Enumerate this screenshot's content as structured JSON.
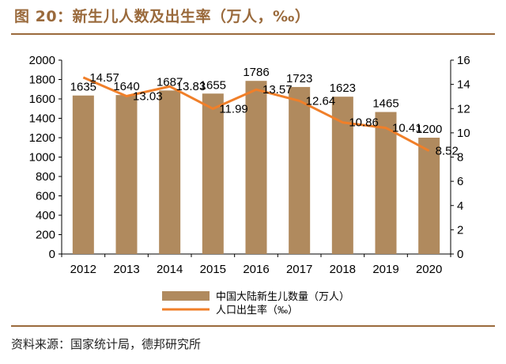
{
  "header": {
    "title": "图 20：新生儿人数及出生率（万人，‰）"
  },
  "source": "资料来源：国家统计局，德邦研究所",
  "colors": {
    "bar": "#b08a5e",
    "line": "#f07f29",
    "accent": "#9a6a3c"
  },
  "chart_data": {
    "type": "bar",
    "categories": [
      "2012",
      "2013",
      "2014",
      "2015",
      "2016",
      "2017",
      "2018",
      "2019",
      "2020"
    ],
    "y_ticks": [
      "0",
      "200",
      "400",
      "600",
      "800",
      "1000",
      "1200",
      "1400",
      "1600",
      "1800",
      "2000"
    ],
    "y2_ticks": [
      "0",
      "2",
      "4",
      "6",
      "8",
      "10",
      "12",
      "14",
      "16"
    ],
    "ylim": [
      0,
      2000
    ],
    "y2lim": [
      0,
      16
    ],
    "grid": false,
    "legend_position": "bottom",
    "series": [
      {
        "name": "中国大陆新生儿数量（万人）",
        "type": "bar",
        "axis": "left",
        "values": [
          1635,
          1640,
          1687,
          1655,
          1786,
          1723,
          1623,
          1465,
          1200
        ],
        "labels": [
          "1635",
          "1640",
          "1687",
          "1655",
          "1786",
          "1723",
          "1623",
          "1465",
          "1200"
        ]
      },
      {
        "name": "人口出生率（‰）",
        "type": "line",
        "axis": "right",
        "values": [
          14.57,
          13.03,
          13.83,
          11.99,
          13.57,
          12.64,
          10.86,
          10.41,
          8.52
        ],
        "labels": [
          "14.57",
          "13.03",
          "13.83",
          "11.99",
          "13.57",
          "12.64",
          "10.86",
          "10.41",
          "8.52"
        ]
      }
    ]
  }
}
